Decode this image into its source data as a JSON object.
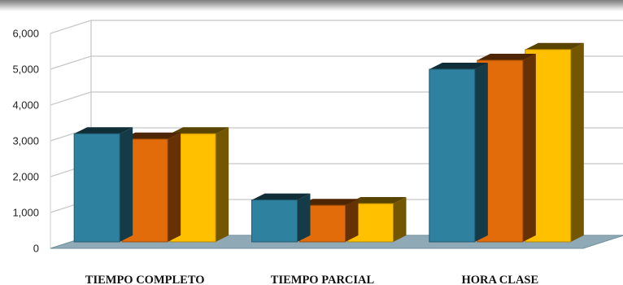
{
  "chart_data": {
    "type": "bar",
    "title": "",
    "xlabel": "",
    "ylabel": "",
    "categories": [
      "TIEMPO COMPLETO",
      "TIEMPO PARCIAL",
      "HORA CLASE"
    ],
    "series": [
      {
        "values": [
          3200,
          1350,
          5000
        ],
        "color": "#2e82a0"
      },
      {
        "values": [
          3050,
          1200,
          5250
        ],
        "color": "#e36c0a"
      },
      {
        "values": [
          3200,
          1250,
          5550
        ],
        "color": "#ffc000"
      }
    ],
    "ylim": [
      0,
      6000
    ],
    "yticks": [
      "0",
      "1,000",
      "2,000",
      "3,000",
      "4,000",
      "5,000",
      "6,000"
    ],
    "grid": true,
    "legend": "none",
    "style": "3d-bar",
    "floor_color": "#8faab6"
  }
}
